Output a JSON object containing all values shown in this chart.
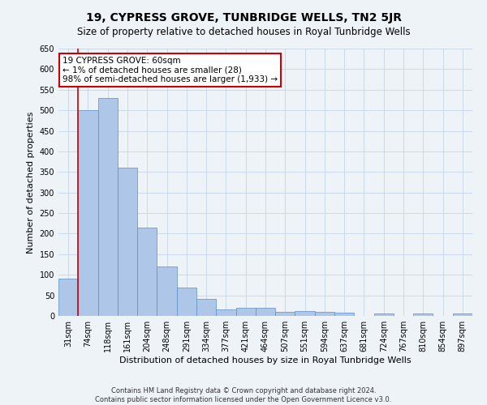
{
  "title": "19, CYPRESS GROVE, TUNBRIDGE WELLS, TN2 5JR",
  "subtitle": "Size of property relative to detached houses in Royal Tunbridge Wells",
  "xlabel": "Distribution of detached houses by size in Royal Tunbridge Wells",
  "ylabel": "Number of detached properties",
  "footer1": "Contains HM Land Registry data © Crown copyright and database right 2024.",
  "footer2": "Contains public sector information licensed under the Open Government Licence v3.0.",
  "annotation_title": "19 CYPRESS GROVE: 60sqm",
  "annotation_line1": "← 1% of detached houses are smaller (28)",
  "annotation_line2": "98% of semi-detached houses are larger (1,933) →",
  "bar_labels": [
    "31sqm",
    "74sqm",
    "118sqm",
    "161sqm",
    "204sqm",
    "248sqm",
    "291sqm",
    "334sqm",
    "377sqm",
    "421sqm",
    "464sqm",
    "507sqm",
    "551sqm",
    "594sqm",
    "637sqm",
    "681sqm",
    "724sqm",
    "767sqm",
    "810sqm",
    "854sqm",
    "897sqm"
  ],
  "bar_values": [
    90,
    500,
    530,
    360,
    215,
    120,
    68,
    42,
    15,
    19,
    19,
    10,
    12,
    10,
    8,
    0,
    5,
    0,
    5,
    0,
    5
  ],
  "bar_color": "#aec6e8",
  "bar_edge_color": "#5b8fc9",
  "vline_color": "#cc0000",
  "ylim": [
    0,
    650
  ],
  "yticks": [
    0,
    50,
    100,
    150,
    200,
    250,
    300,
    350,
    400,
    450,
    500,
    550,
    600,
    650
  ],
  "grid_color": "#c5d5e8",
  "bg_color": "#eef3f8",
  "box_color": "#cc0000",
  "title_fontsize": 10,
  "subtitle_fontsize": 8.5,
  "ylabel_fontsize": 8,
  "xlabel_fontsize": 8,
  "tick_fontsize": 7,
  "footer_fontsize": 6
}
